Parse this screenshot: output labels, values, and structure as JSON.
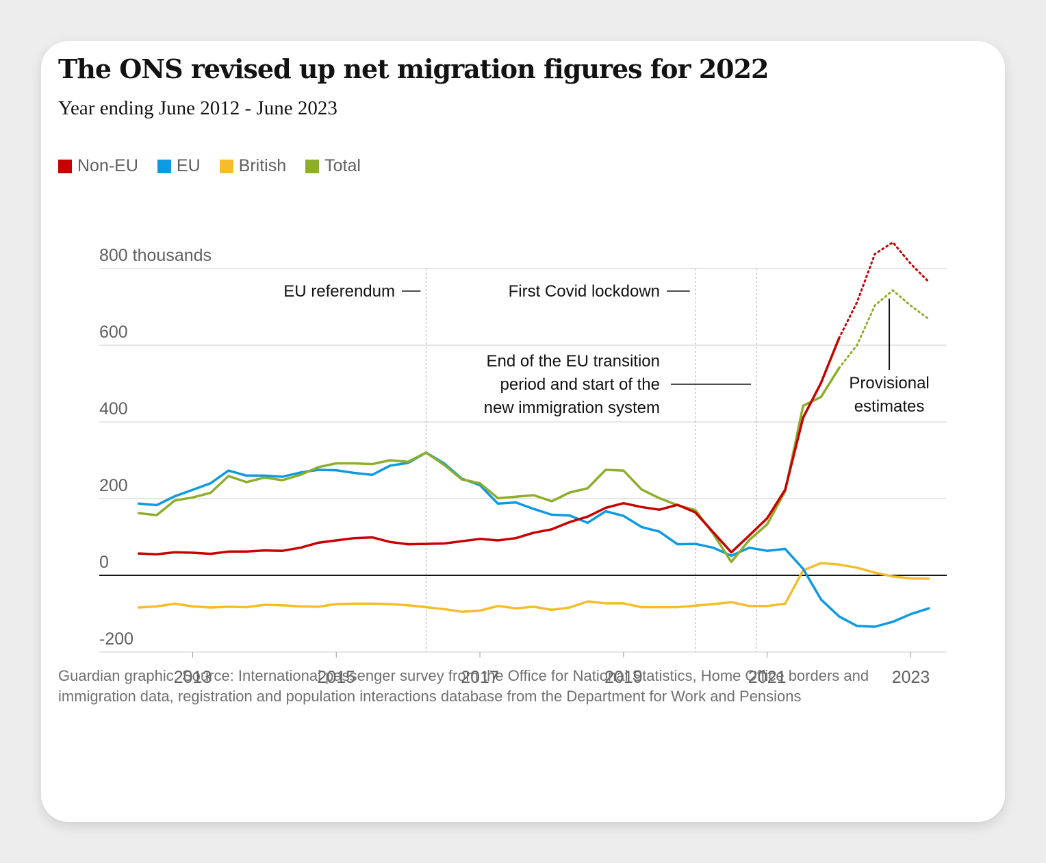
{
  "title": "The ONS revised up net migration figures for 2022",
  "subtitle": "Year ending June 2012 - June 2023",
  "source": "Guardian graphic. Source: International passenger survey from the Office for National Statistics, Home Office borders and immigration data, registration and population interactions database from the Department for Work and Pensions",
  "colors": {
    "non_eu": "#c70000",
    "eu": "#0d9ae0",
    "british": "#f5bd2c",
    "total": "#8cae2b"
  },
  "chart_data": {
    "type": "line",
    "y_unit_label": "800 thousands",
    "yticks": [
      {
        "value": 800,
        "label": "800 thousands"
      },
      {
        "value": 600,
        "label": "600"
      },
      {
        "value": 400,
        "label": "400"
      },
      {
        "value": 200,
        "label": "200"
      },
      {
        "value": 0,
        "label": "0"
      },
      {
        "value": -200,
        "label": "-200"
      }
    ],
    "ylim": [
      -200,
      800
    ],
    "xlim": [
      2011.7,
      2023.5
    ],
    "xticks": [
      {
        "value": 2013,
        "label": "2013"
      },
      {
        "value": 2015,
        "label": "2015"
      },
      {
        "value": 2017,
        "label": "2017"
      },
      {
        "value": 2019,
        "label": "2019"
      },
      {
        "value": 2021,
        "label": "2021"
      },
      {
        "value": 2023,
        "label": "2023"
      }
    ],
    "x": [
      2012.25,
      2012.5,
      2012.75,
      2013.0,
      2013.25,
      2013.5,
      2013.75,
      2014.0,
      2014.25,
      2014.5,
      2014.75,
      2015.0,
      2015.25,
      2015.5,
      2015.75,
      2016.0,
      2016.25,
      2016.5,
      2016.75,
      2017.0,
      2017.25,
      2017.5,
      2017.75,
      2018.0,
      2018.25,
      2018.5,
      2018.75,
      2019.0,
      2019.25,
      2019.5,
      2019.75,
      2020.0,
      2020.25,
      2020.5,
      2020.75,
      2021.0,
      2021.25,
      2021.5,
      2021.75,
      2022.0,
      2022.25,
      2022.5,
      2022.75,
      2023.0,
      2023.25
    ],
    "series": [
      {
        "name": "Non-EU",
        "color_key": "non_eu",
        "values": [
          57,
          55,
          60,
          59,
          56,
          62,
          62,
          65,
          64,
          72,
          85,
          91,
          97,
          99,
          87,
          81,
          82,
          83,
          89,
          95,
          91,
          97,
          111,
          120,
          139,
          153,
          176,
          188,
          178,
          171,
          184,
          164,
          112,
          60,
          104,
          149,
          223,
          411,
          502,
          618,
          712,
          838,
          868,
          812,
          765
        ],
        "provisional_from": 2022.0
      },
      {
        "name": "EU",
        "color_key": "eu",
        "values": [
          187,
          183,
          206,
          223,
          240,
          273,
          260,
          260,
          257,
          268,
          275,
          274,
          267,
          262,
          286,
          293,
          320,
          292,
          252,
          235,
          187,
          190,
          173,
          158,
          156,
          137,
          167,
          155,
          126,
          114,
          81,
          82,
          72,
          51,
          72,
          64,
          69,
          17,
          -63,
          -107,
          -132,
          -134,
          -121,
          -101,
          -86
        ]
      },
      {
        "name": "British",
        "color_key": "british",
        "values": [
          -84,
          -81,
          -74,
          -81,
          -84,
          -82,
          -83,
          -77,
          -78,
          -81,
          -82,
          -75,
          -74,
          -74,
          -75,
          -78,
          -83,
          -88,
          -95,
          -92,
          -80,
          -86,
          -82,
          -90,
          -84,
          -68,
          -73,
          -73,
          -83,
          -83,
          -83,
          -79,
          -75,
          -70,
          -80,
          -80,
          -74,
          13,
          32,
          28,
          20,
          7,
          -3,
          -8,
          -9
        ]
      },
      {
        "name": "Total",
        "color_key": "total",
        "values": [
          162,
          157,
          195,
          203,
          215,
          259,
          243,
          255,
          248,
          262,
          282,
          292,
          292,
          290,
          300,
          296,
          320,
          288,
          250,
          240,
          201,
          205,
          209,
          193,
          216,
          227,
          275,
          273,
          224,
          201,
          183,
          170,
          108,
          35,
          92,
          133,
          219,
          442,
          465,
          540,
          600,
          704,
          743,
          703,
          668
        ],
        "provisional_from": 2022.0
      }
    ],
    "annotations": [
      {
        "x": 2016.25,
        "lines": [
          "EU referendum"
        ]
      },
      {
        "x": 2020.0,
        "lines": [
          "First Covid lockdown"
        ]
      },
      {
        "x": 2020.85,
        "lines": [
          "End of the EU transition",
          "period and start of the",
          "new immigration system"
        ]
      }
    ],
    "provisional_label": [
      "Provisional",
      "estimates"
    ]
  }
}
